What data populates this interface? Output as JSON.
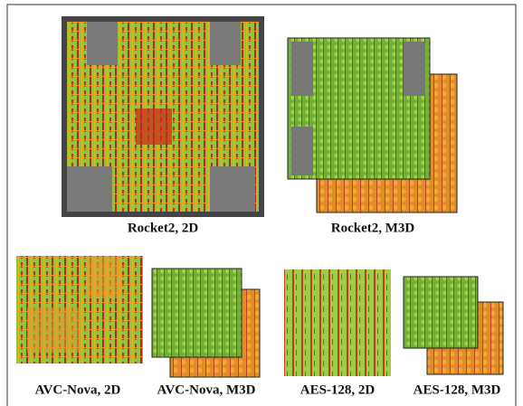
{
  "figure": {
    "panels": [
      {
        "caption": "Rocket2, 2D"
      },
      {
        "caption": "Rocket2, M3D"
      },
      {
        "caption": "AVC-Nova, 2D"
      },
      {
        "caption": "AVC-Nova, M3D"
      },
      {
        "caption": "AES-128, 2D"
      },
      {
        "caption": "AES-128, M3D"
      }
    ]
  }
}
